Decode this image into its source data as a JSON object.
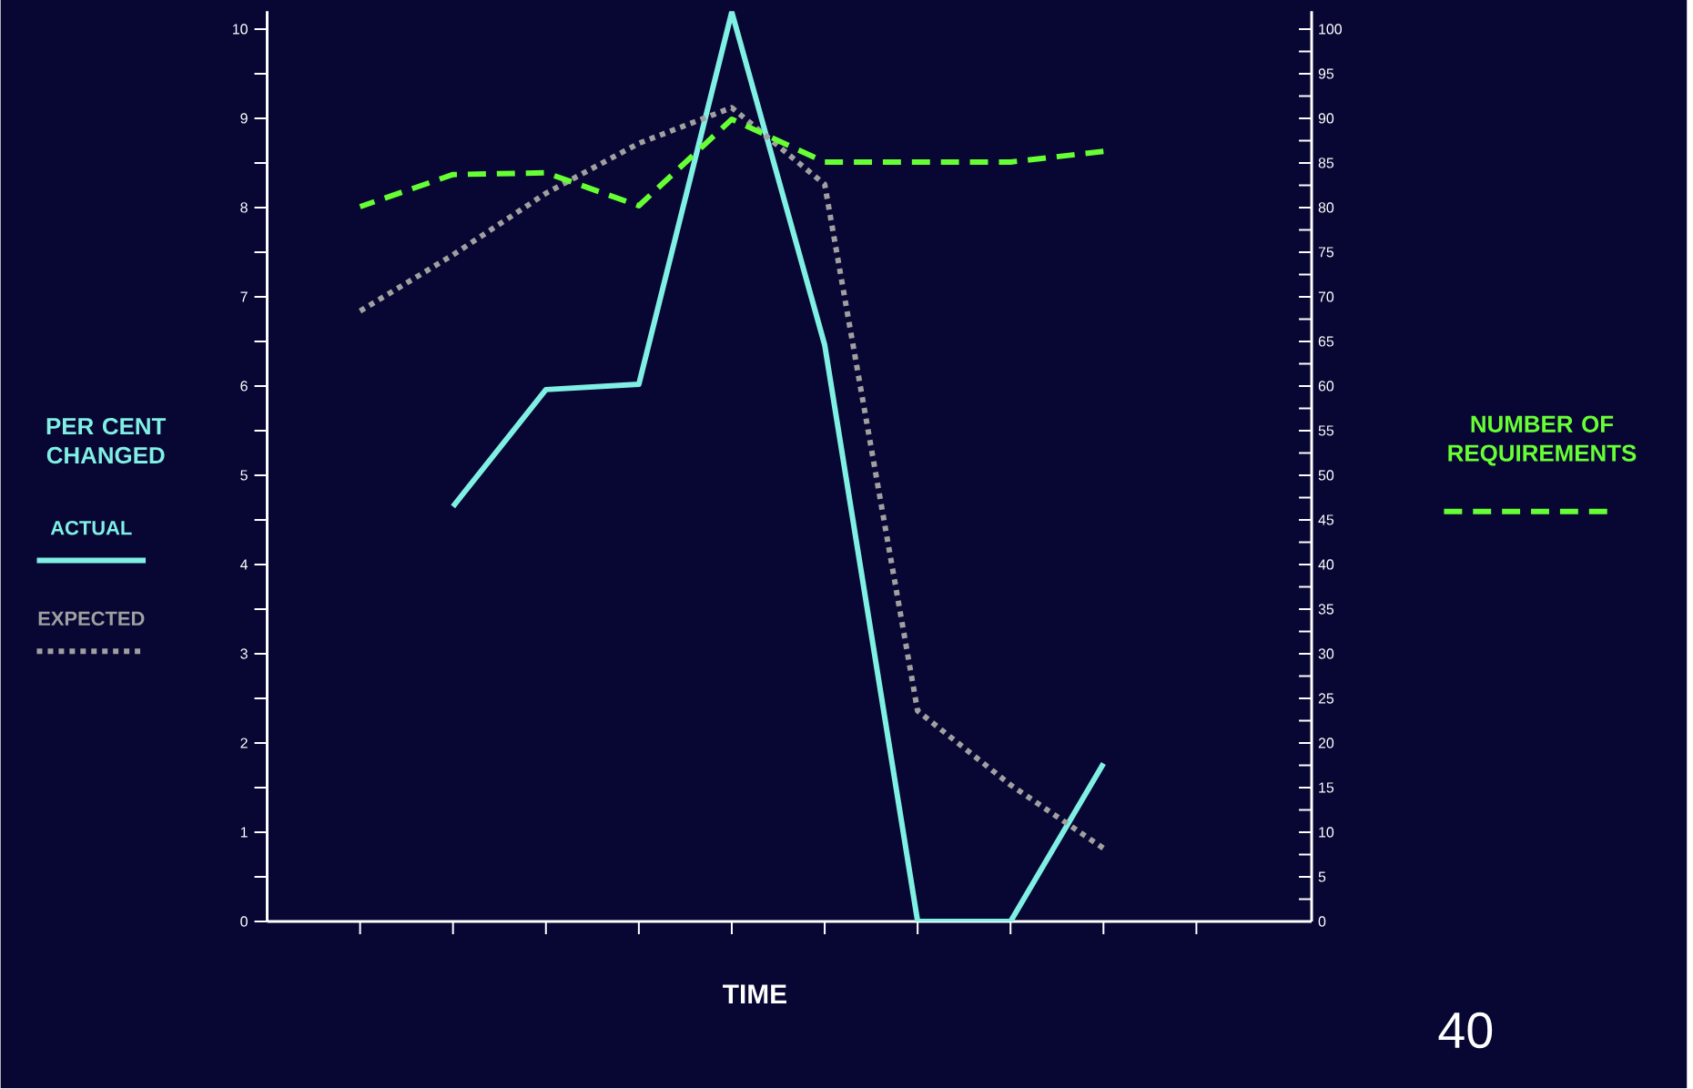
{
  "chart_data": {
    "type": "line",
    "xlabel": "TIME",
    "ylabel": "PER CENT CHANGED",
    "y2label": "NUMBER OF REQUIREMENTS",
    "legend": "left",
    "categories": [
      null,
      null,
      null,
      null,
      null,
      null,
      null,
      null,
      null,
      null
    ],
    "ylim": [
      0,
      10.2
    ],
    "yticks": [
      0,
      {
        "value": 0.5,
        "label": null
      },
      1,
      {
        "value": 1.5,
        "label": null
      },
      2,
      {
        "value": 2.5,
        "label": null
      },
      3,
      {
        "value": 3.5,
        "label": null
      },
      4,
      {
        "value": 4.5,
        "label": null
      },
      5,
      {
        "value": 5.5,
        "label": null
      },
      6,
      {
        "value": 6.5,
        "label": null
      },
      7,
      {
        "value": 7.5,
        "label": null
      },
      8,
      {
        "value": 8.5,
        "label": null
      },
      9,
      {
        "value": 9.5,
        "label": null
      },
      10
    ],
    "y2lim": [
      0,
      102
    ],
    "y2ticks": [
      0,
      {
        "value": 2.5,
        "label": null
      },
      5,
      {
        "value": 7.5,
        "label": null
      },
      10,
      {
        "value": 12.5,
        "label": null
      },
      15,
      {
        "value": 17.5,
        "label": null
      },
      20,
      {
        "value": 22.5,
        "label": null
      },
      25,
      {
        "value": 27.5,
        "label": null
      },
      30,
      {
        "value": 32.5,
        "label": null
      },
      35,
      {
        "value": 37.5,
        "label": null
      },
      40,
      {
        "value": 42.5,
        "label": null
      },
      45,
      {
        "value": 47.5,
        "label": null
      },
      50,
      {
        "value": 52.5,
        "label": null
      },
      55,
      {
        "value": 57.5,
        "label": null
      },
      60,
      {
        "value": 62.5,
        "label": null
      },
      65,
      {
        "value": 67.5,
        "label": null
      },
      70,
      {
        "value": 72.5,
        "label": null
      },
      75,
      {
        "value": 77.5,
        "label": null
      },
      80,
      {
        "value": 82.5,
        "label": null
      },
      85,
      {
        "value": 87.5,
        "label": null
      },
      90,
      {
        "value": 92.5,
        "label": null
      },
      95,
      {
        "value": 97.5,
        "label": null
      },
      100
    ],
    "series": [
      {
        "name": "ACTUAL",
        "color": "#80f0e4",
        "line_style": "solid",
        "values": [
          null,
          4.65,
          5.96,
          6.02,
          10.19,
          6.46,
          0,
          0,
          1.77,
          null
        ]
      },
      {
        "name": "EXPECTED",
        "color": "#a0a0a0",
        "line_style": "dotted",
        "values": [
          6.84,
          7.47,
          8.16,
          8.72,
          9.12,
          8.26,
          2.36,
          1.53,
          0.82,
          null
        ]
      },
      {
        "color": "#66ff33",
        "line_style": "dashed",
        "axis": "y2",
        "values": [
          80.1,
          83.7,
          83.9,
          80.2,
          89.9,
          85.1,
          85.1,
          85.1,
          86.3,
          null
        ]
      }
    ],
    "annotations": [
      "40"
    ]
  }
}
